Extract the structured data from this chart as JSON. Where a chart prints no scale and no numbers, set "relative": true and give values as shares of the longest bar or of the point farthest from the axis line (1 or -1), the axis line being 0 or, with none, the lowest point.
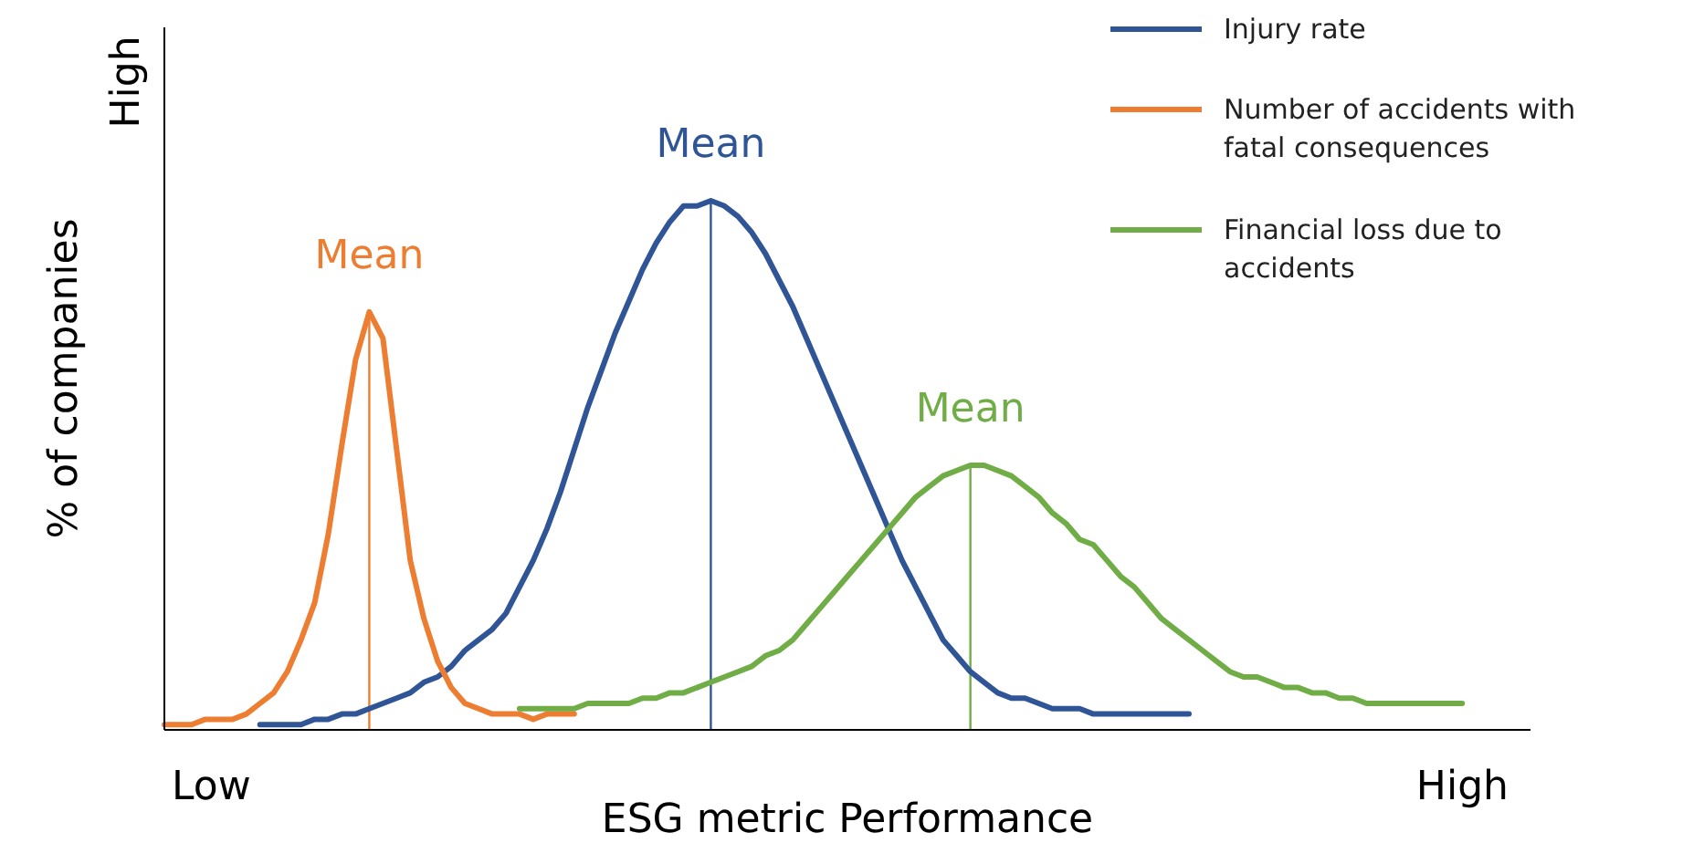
{
  "chart_data": {
    "type": "line",
    "xlabel": "ESG metric Performance",
    "ylabel": "% of companies",
    "relative": true,
    "legend": "top right",
    "categories": [
      null,
      null,
      null,
      null,
      null,
      null,
      null,
      null,
      null,
      null,
      null,
      null,
      null,
      null,
      null,
      null,
      null,
      null,
      null,
      null,
      null,
      null,
      null,
      null,
      null,
      null,
      null,
      null,
      null,
      null,
      null,
      null,
      null,
      null,
      null,
      null,
      null,
      null,
      null,
      null,
      null,
      null,
      null,
      null,
      null,
      null,
      null,
      null,
      null,
      null,
      null,
      null,
      null,
      null,
      null,
      null,
      null,
      null,
      null,
      null,
      null,
      null,
      null,
      null,
      null,
      null,
      null,
      null,
      null,
      null,
      null,
      null,
      null,
      null,
      null,
      null,
      null,
      null,
      null,
      null,
      null,
      null,
      null,
      null,
      null,
      null,
      null,
      null,
      null,
      null,
      null,
      null,
      null,
      null,
      null,
      null
    ],
    "series": [
      {
        "name": "Injury rate",
        "color": "#2f5597",
        "values": [
          null,
          null,
          null,
          null,
          null,
          null,
          null,
          0.01,
          0.01,
          0.01,
          0.01,
          0.02,
          0.02,
          0.03,
          0.03,
          0.04,
          0.05,
          0.06,
          0.07,
          0.09,
          0.1,
          0.12,
          0.15,
          0.17,
          0.19,
          0.22,
          0.27,
          0.32,
          0.38,
          0.45,
          0.53,
          0.61,
          0.68,
          0.75,
          0.81,
          0.87,
          0.92,
          0.96,
          0.99,
          0.99,
          1,
          0.99,
          0.97,
          0.94,
          0.9,
          0.85,
          0.8,
          0.74,
          0.68,
          0.62,
          0.56,
          0.5,
          0.44,
          0.38,
          0.32,
          0.27,
          0.22,
          0.17,
          0.14,
          0.11,
          0.09,
          0.07,
          0.06,
          0.06,
          0.05,
          0.04,
          0.04,
          0.04,
          0.03,
          0.03,
          0.03,
          0.03,
          0.03,
          0.03,
          0.03,
          0.03,
          null,
          null,
          null,
          null,
          null,
          null,
          null,
          null,
          null,
          null,
          null,
          null,
          null,
          null,
          null,
          null,
          null,
          null,
          null,
          null
        ]
      },
      {
        "name": "Number of accidents with fatal consequences",
        "color": "#ed7d31",
        "values": [
          0.01,
          0.01,
          0.01,
          0.02,
          0.02,
          0.02,
          0.03,
          0.05,
          0.07,
          0.11,
          0.17,
          0.24,
          0.37,
          0.54,
          0.7,
          0.79,
          0.74,
          0.53,
          0.32,
          0.21,
          0.13,
          0.08,
          0.05,
          0.04,
          0.03,
          0.03,
          0.03,
          0.02,
          0.03,
          0.03,
          0.03,
          null,
          null,
          null,
          null,
          null,
          null,
          null,
          null,
          null,
          null,
          null,
          null,
          null,
          null,
          null,
          null,
          null,
          null,
          null,
          null,
          null,
          null,
          null,
          null,
          null,
          null,
          null,
          null,
          null,
          null,
          null,
          null,
          null,
          null,
          null,
          null,
          null,
          null,
          null,
          null,
          null,
          null,
          null,
          null,
          null,
          null,
          null,
          null,
          null,
          null,
          null,
          null,
          null,
          null,
          null,
          null,
          null,
          null,
          null,
          null,
          null,
          null,
          null,
          null,
          null
        ]
      },
      {
        "name": "Financial loss due to accidents",
        "color": "#70ad47",
        "values": [
          null,
          null,
          null,
          null,
          null,
          null,
          null,
          null,
          null,
          null,
          null,
          null,
          null,
          null,
          null,
          null,
          null,
          null,
          null,
          null,
          null,
          null,
          null,
          null,
          null,
          null,
          0.04,
          0.04,
          0.04,
          0.04,
          0.04,
          0.05,
          0.05,
          0.05,
          0.05,
          0.06,
          0.06,
          0.07,
          0.07,
          0.08,
          0.09,
          0.1,
          0.11,
          0.12,
          0.14,
          0.15,
          0.17,
          0.2,
          0.23,
          0.26,
          0.29,
          0.32,
          0.35,
          0.38,
          0.41,
          0.44,
          0.46,
          0.48,
          0.49,
          0.5,
          0.5,
          0.49,
          0.48,
          0.46,
          0.44,
          0.41,
          0.39,
          0.36,
          0.35,
          0.32,
          0.29,
          0.27,
          0.24,
          0.21,
          0.19,
          0.17,
          0.15,
          0.13,
          0.11,
          0.1,
          0.1,
          0.09,
          0.08,
          0.08,
          0.07,
          0.07,
          0.06,
          0.06,
          0.05,
          0.05,
          0.05,
          0.05,
          0.05,
          0.05,
          0.05,
          0.05
        ]
      }
    ],
    "annotations": [
      "Mean",
      "Mean",
      "Mean",
      "High",
      "Low",
      "High"
    ]
  }
}
